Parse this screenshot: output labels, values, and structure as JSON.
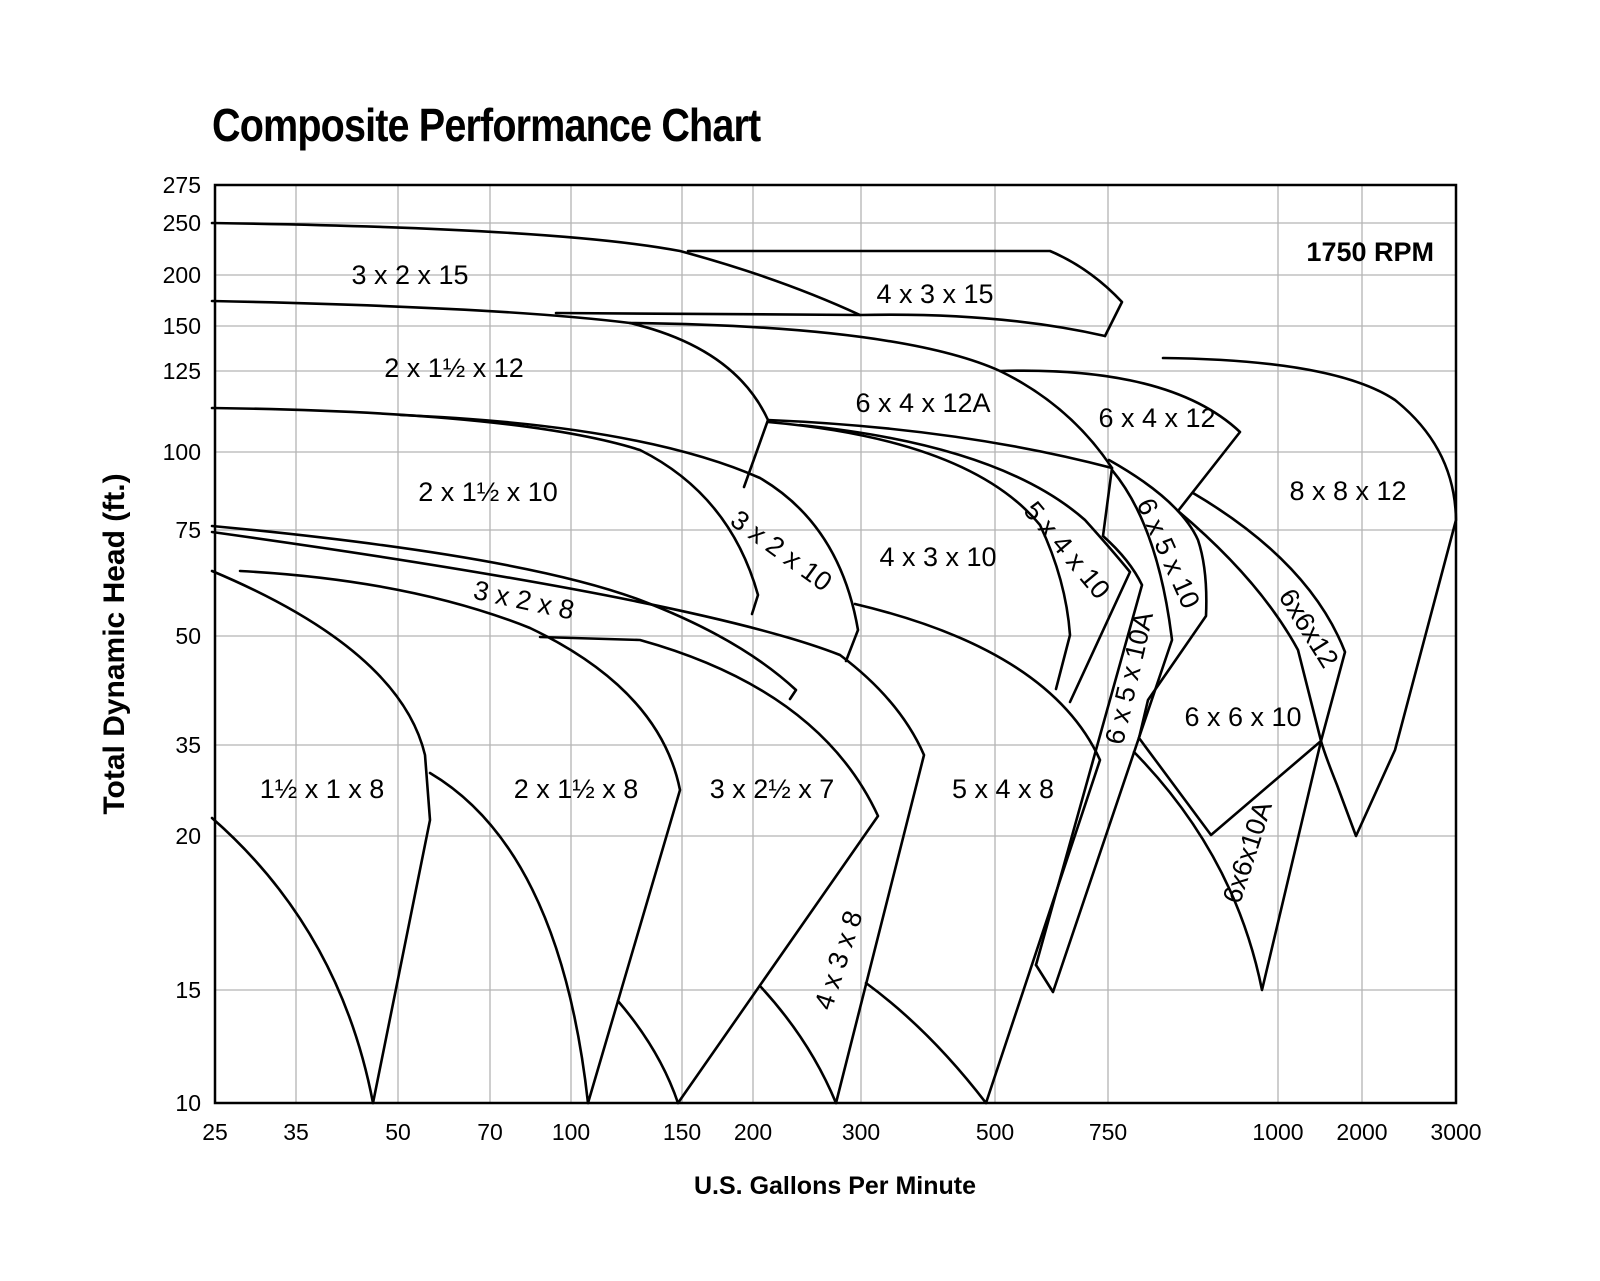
{
  "chart_data": {
    "type": "line",
    "title": "Composite Performance Chart",
    "xlabel": "U.S. Gallons Per Minute",
    "ylabel": "Total Dynamic Head (ft.)",
    "annotation": "1750 RPM",
    "x_ticks": [
      "25",
      "35",
      "50",
      "70",
      "100",
      "150",
      "200",
      "300",
      "500",
      "750",
      "1000",
      "2000",
      "3000"
    ],
    "y_ticks": [
      "275",
      "250",
      "200",
      "150",
      "125",
      "100",
      "75",
      "50",
      "35",
      "20",
      "15",
      "10"
    ],
    "grid": true,
    "curve_families": [
      {
        "label": "3 x 2 x 15"
      },
      {
        "label": "4 x 3 x 15"
      },
      {
        "label": "2 x 1½ x 12"
      },
      {
        "label": "6 x 4 x 12A"
      },
      {
        "label": "6 x 4 x 12"
      },
      {
        "label": "8 x 8 x 12"
      },
      {
        "label": "2 x 1½ x 10"
      },
      {
        "label": "3 x 2 x 10"
      },
      {
        "label": "4 x 3 x 10"
      },
      {
        "label": "5 x 4 x 10"
      },
      {
        "label": "6 x 5 x 10"
      },
      {
        "label": "6x6x12"
      },
      {
        "label": "6 x 5 x 10A"
      },
      {
        "label": "6 x 6 x 10"
      },
      {
        "label": "6x6x10A"
      },
      {
        "label": "3 x 2 x 8"
      },
      {
        "label": "1½ x 1 x 8"
      },
      {
        "label": "2 x 1½ x 8"
      },
      {
        "label": "3 x 2½ x 7"
      },
      {
        "label": "4 x 3 x 8"
      },
      {
        "label": "5 x 4 x 8"
      }
    ]
  }
}
